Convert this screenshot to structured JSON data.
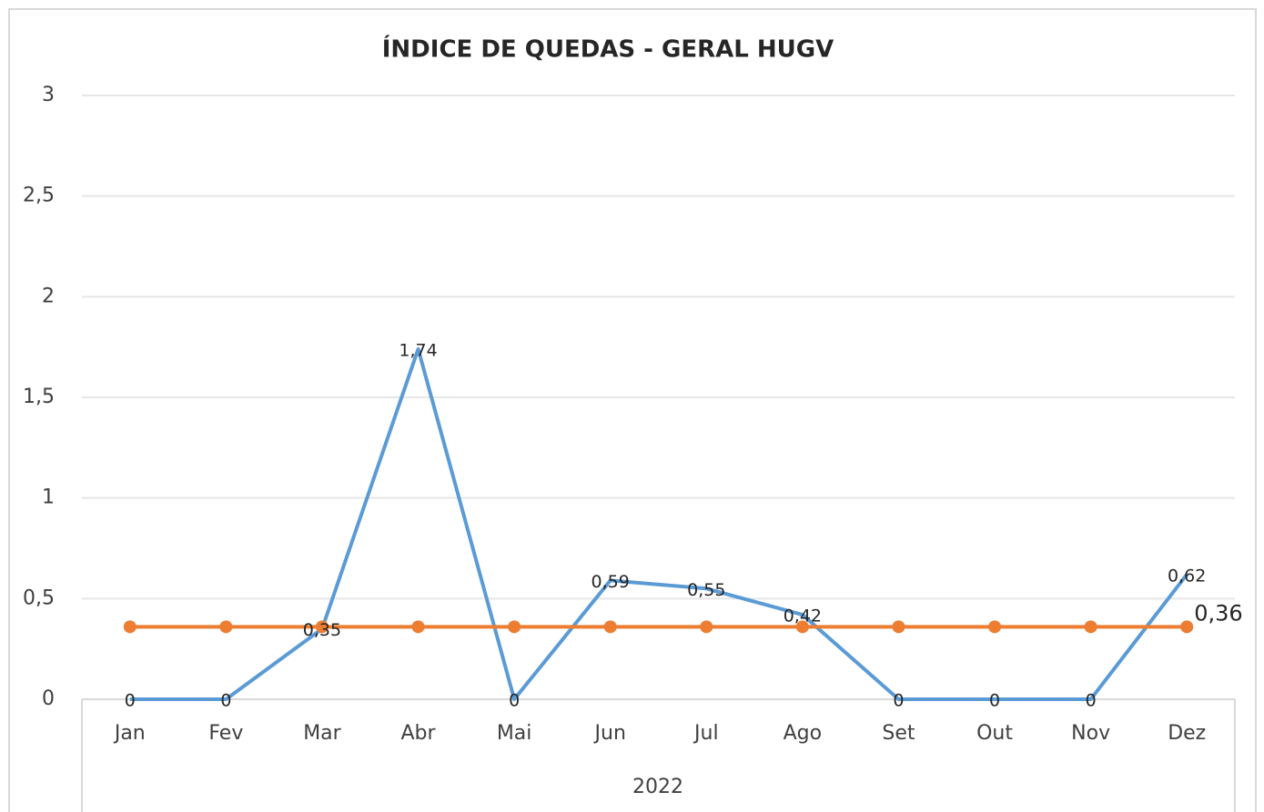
{
  "chart_data": {
    "type": "line",
    "title": "ÍNDICE DE QUEDAS - GERAL HUGV",
    "x_label": "2022",
    "categories": [
      "Jan",
      "Fev",
      "Mar",
      "Abr",
      "Mai",
      "Jun",
      "Jul",
      "Ago",
      "Set",
      "Out",
      "Nov",
      "Dez"
    ],
    "series": [
      {
        "color": "#5b9bd5",
        "markers": false,
        "values": [
          0,
          0,
          0.35,
          1.74,
          0,
          0.59,
          0.55,
          0.42,
          0,
          0,
          0,
          0.62
        ],
        "value_labels": [
          "0",
          "0",
          "0,35",
          "1,74",
          "0",
          "0,59",
          "0,55",
          "0,42",
          "0",
          "0",
          "0",
          "0,62"
        ]
      },
      {
        "color": "#ed7d31",
        "markers": true,
        "values": [
          0.36,
          0.36,
          0.36,
          0.36,
          0.36,
          0.36,
          0.36,
          0.36,
          0.36,
          0.36,
          0.36,
          0.36
        ],
        "value_labels": [
          null,
          null,
          null,
          null,
          null,
          null,
          null,
          null,
          null,
          null,
          null,
          "0,36"
        ]
      }
    ],
    "ylim": [
      0,
      3
    ],
    "yticks": [
      0,
      {
        "value": 0.5,
        "label": "0,5"
      },
      1,
      {
        "value": 1.5,
        "label": "1,5"
      },
      2,
      {
        "value": 2.5,
        "label": "2,5"
      },
      3
    ],
    "grid": true
  }
}
